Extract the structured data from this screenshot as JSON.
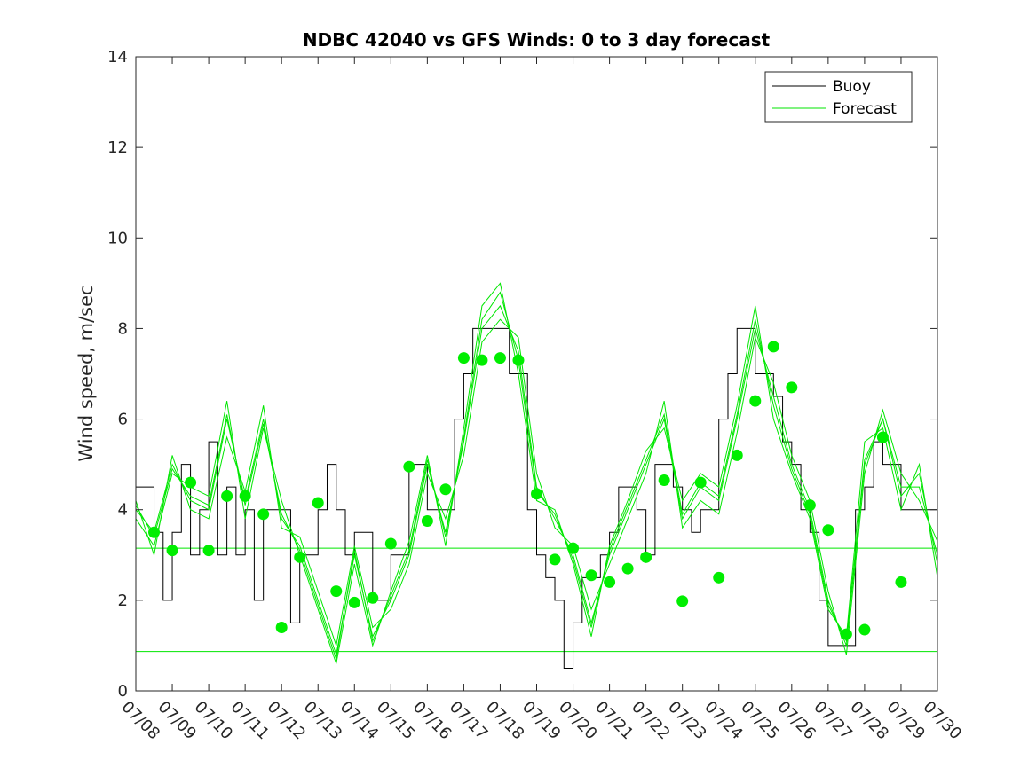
{
  "chart_data": {
    "type": "line",
    "title": "NDBC 42040 vs GFS Winds: 0 to 3 day forecast",
    "xlabel": "",
    "ylabel": "Wind speed, m/sec",
    "xlim": [
      0,
      22
    ],
    "ylim": [
      0,
      14
    ],
    "x_unit": "days since 07/08",
    "yticks": [
      0,
      2,
      4,
      6,
      8,
      10,
      12,
      14
    ],
    "xtick_labels": [
      "07/08",
      "07/09",
      "07/10",
      "07/11",
      "07/12",
      "07/13",
      "07/14",
      "07/15",
      "07/16",
      "07/17",
      "07/18",
      "07/19",
      "07/20",
      "07/21",
      "07/22",
      "07/23",
      "07/24",
      "07/25",
      "07/26",
      "07/27",
      "07/28",
      "07/29",
      "07/30"
    ],
    "grid": false,
    "legend": {
      "position": "top-right",
      "entries": [
        "Buoy",
        "Forecast"
      ]
    },
    "colors": {
      "buoy": "#000000",
      "forecast": "#00e600",
      "points": "#00ee00"
    },
    "reference_lines": [
      3.15,
      0.87
    ],
    "buoy_x": [
      0,
      0.3,
      0.5,
      0.75,
      1,
      1.25,
      1.5,
      1.75,
      2,
      2.25,
      2.5,
      2.75,
      3,
      3.25,
      3.5,
      3.75,
      4,
      4.25,
      4.5,
      4.75,
      5,
      5.25,
      5.5,
      5.75,
      6,
      6.25,
      6.5,
      6.75,
      7,
      7.25,
      7.5,
      7.75,
      8,
      8.25,
      8.5,
      8.75,
      9,
      9.25,
      9.5,
      9.75,
      10,
      10.25,
      10.5,
      10.75,
      11,
      11.25,
      11.5,
      11.75,
      12,
      12.25,
      12.5,
      12.75,
      13,
      13.25,
      13.5,
      13.75,
      14,
      14.25,
      14.5,
      14.75,
      15,
      15.25,
      15.5,
      15.75,
      16,
      16.25,
      16.5,
      16.75,
      17,
      17.25,
      17.5,
      17.75,
      18,
      18.25,
      18.5,
      18.75,
      19,
      19.25,
      19.5,
      19.75,
      20,
      20.25,
      20.5,
      20.75,
      21,
      21.25,
      21.5,
      21.75,
      22
    ],
    "buoy_y": [
      4.5,
      4.5,
      3.5,
      2,
      3.5,
      5,
      3,
      4,
      5.5,
      3,
      4.5,
      3,
      4,
      2,
      4,
      4,
      4,
      1.5,
      3,
      3,
      4,
      5,
      4,
      3,
      3.5,
      3.5,
      2,
      2,
      3,
      3,
      5,
      5,
      4,
      4,
      4,
      6,
      7,
      8,
      8,
      8,
      8,
      7,
      7,
      4,
      3,
      2.5,
      2,
      0.5,
      1.5,
      2.5,
      2.5,
      3,
      3.5,
      4.5,
      4.5,
      4,
      3,
      5,
      5,
      4.5,
      4,
      3.5,
      4,
      4,
      6,
      7,
      8,
      8,
      7,
      7,
      6.5,
      5.5,
      5,
      4,
      3.5,
      2,
      1,
      1,
      1,
      4,
      4.5,
      5.5,
      5,
      5,
      4,
      4,
      4,
      4,
      3
    ],
    "forecast_x": [
      0,
      0.5,
      1,
      1.5,
      2,
      2.5,
      3,
      3.5,
      4,
      4.5,
      5,
      5.5,
      6,
      6.5,
      7,
      7.5,
      8,
      8.5,
      9,
      9.5,
      10,
      10.5,
      11,
      11.5,
      12,
      12.5,
      13,
      13.5,
      14,
      14.5,
      15,
      15.5,
      16,
      16.5,
      17,
      17.5,
      18,
      18.5,
      19,
      19.5,
      20,
      20.5,
      21,
      21.5,
      22
    ],
    "forecast_series": [
      {
        "values": [
          4,
          3.5,
          5,
          4.2,
          4,
          6,
          4.2,
          6,
          3.8,
          3.2,
          2,
          0.8,
          3,
          1.2,
          2,
          3,
          5,
          3.5,
          5.5,
          8,
          8.5,
          7.5,
          4.5,
          3.8,
          3,
          1.5,
          3,
          4,
          5,
          6,
          3.8,
          4.5,
          4.2,
          6,
          8,
          6.5,
          5,
          4,
          2,
          1,
          5,
          6,
          4.5,
          4.5,
          3
        ]
      },
      {
        "values": [
          3.8,
          3.2,
          4.8,
          4.5,
          4.3,
          6.4,
          3.8,
          5.8,
          4.2,
          3,
          1.8,
          0.6,
          2.8,
          1,
          2.2,
          3.3,
          5.2,
          3.2,
          5.8,
          8.5,
          9,
          7,
          4.2,
          4,
          2.8,
          1.2,
          3.2,
          4.2,
          5.3,
          5.8,
          4.2,
          4.8,
          4.5,
          6.3,
          8.5,
          6,
          4.8,
          3.8,
          1.8,
          1.2,
          5.5,
          5.8,
          4,
          5,
          2.5
        ]
      },
      {
        "values": [
          4.2,
          3,
          5.2,
          4,
          3.8,
          5.6,
          4.4,
          6.3,
          3.6,
          3.4,
          2.2,
          1,
          3.2,
          1.4,
          1.8,
          2.8,
          4.8,
          3.8,
          5.2,
          7.7,
          8.2,
          7.8,
          4.8,
          3.6,
          3.2,
          1.8,
          2.8,
          3.8,
          4.8,
          6.4,
          3.6,
          4.2,
          3.9,
          5.7,
          7.8,
          6.8,
          5.2,
          4.2,
          2.2,
          0.8,
          4.8,
          6.2,
          4.8,
          4.2,
          3.3
        ]
      },
      {
        "values": [
          4.1,
          3.4,
          4.9,
          4.3,
          4.1,
          6.1,
          4.1,
          5.9,
          3.9,
          3.1,
          1.9,
          0.7,
          3.1,
          1.1,
          2.1,
          3.1,
          5.1,
          3.4,
          5.6,
          8.2,
          8.8,
          7.3,
          4.4,
          3.9,
          2.9,
          1.4,
          3.1,
          4.1,
          5.1,
          6.1,
          3.9,
          4.6,
          4.3,
          6.1,
          8.2,
          6.3,
          4.9,
          3.9,
          1.9,
          1.1,
          5.1,
          6,
          4.3,
          4.8,
          2.8
        ]
      }
    ],
    "forecast_points": {
      "x": [
        0.5,
        1,
        1.5,
        2,
        2.5,
        3,
        3.5,
        4,
        4.5,
        5,
        5.5,
        6,
        6.5,
        7,
        7.5,
        8,
        8.5,
        9,
        9.5,
        10,
        10.5,
        11,
        11.5,
        12,
        12.5,
        13,
        13.5,
        14,
        14.5,
        15,
        15.5,
        16,
        16.5,
        17,
        17.5,
        18,
        18.5,
        19,
        19.5,
        20,
        20.5,
        21
      ],
      "y": [
        3.5,
        3.1,
        4.6,
        3.1,
        4.3,
        4.3,
        3.9,
        1.4,
        2.95,
        4.15,
        2.2,
        1.95,
        2.05,
        3.25,
        4.95,
        3.75,
        4.45,
        7.35,
        7.3,
        7.35,
        7.3,
        4.35,
        2.9,
        3.15,
        2.55,
        2.4,
        2.7,
        2.95,
        4.65,
        1.98,
        4.6,
        2.5,
        5.2,
        6.4,
        7.6,
        6.7,
        4.1,
        3.55,
        1.25,
        1.35,
        5.6,
        2.4
      ]
    }
  }
}
